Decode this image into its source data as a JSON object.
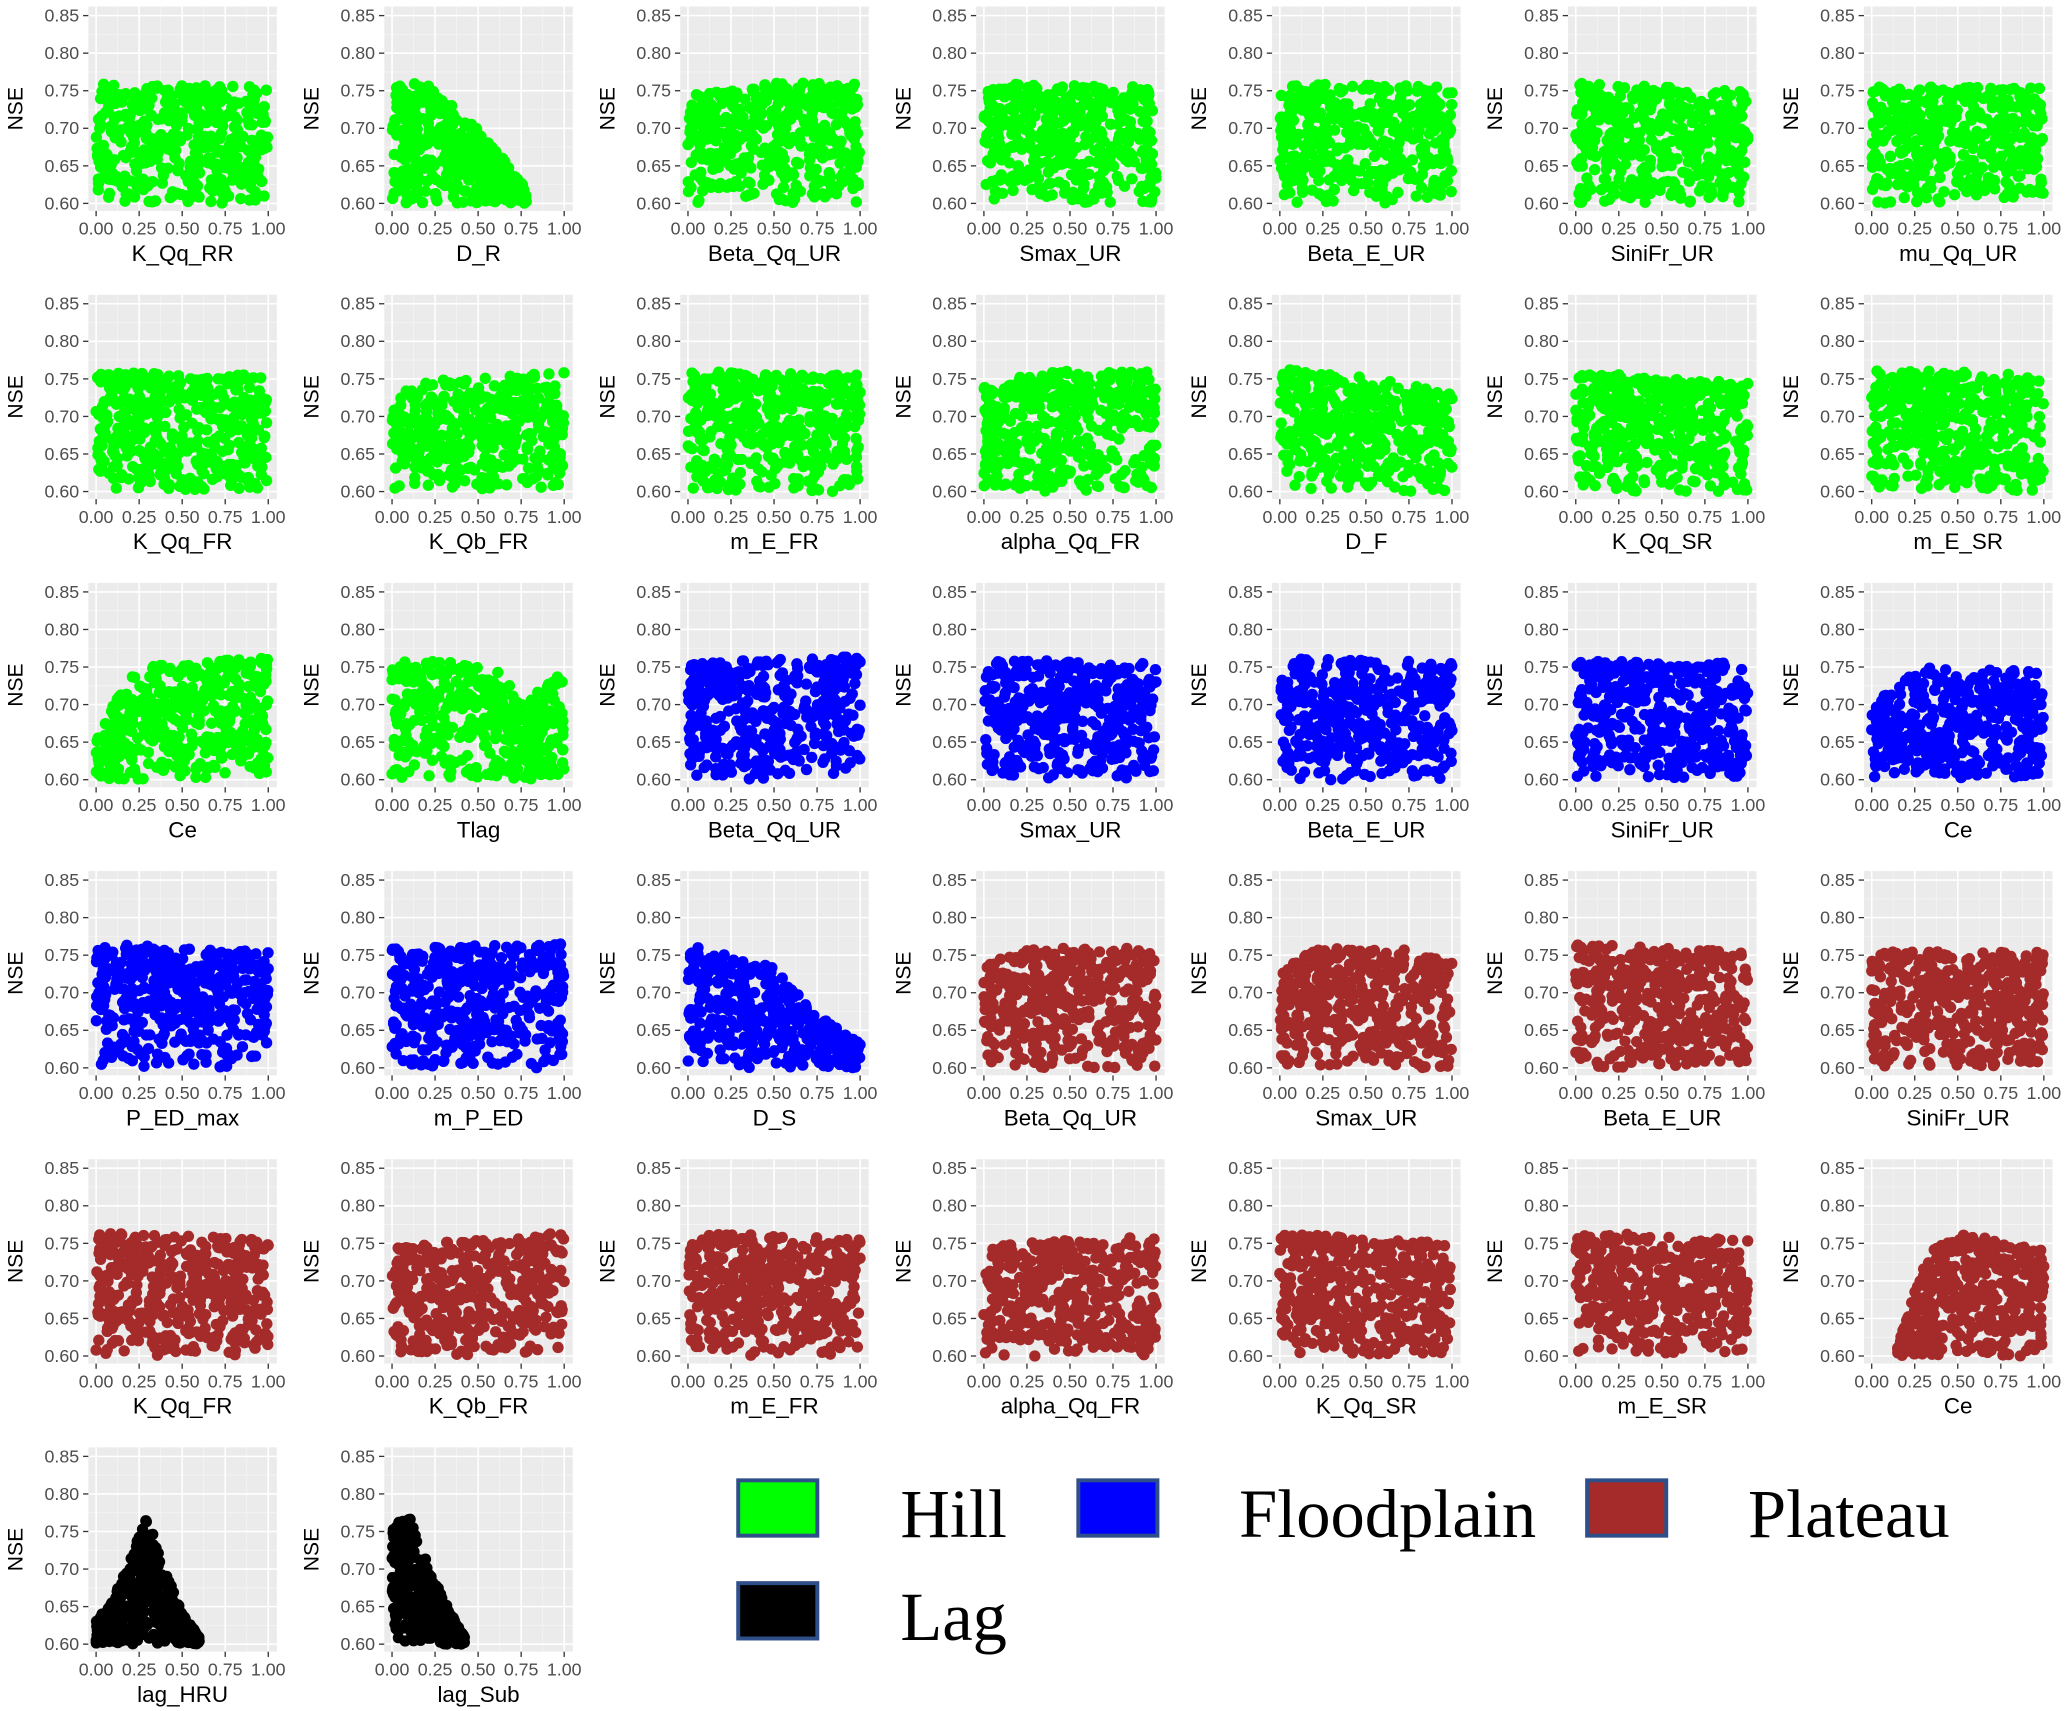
{
  "chart_data": {
    "type": "scatter",
    "ylabel": "NSE",
    "ylim": [
      0.59,
      0.862
    ],
    "xlim": [
      -0.045,
      1.05
    ],
    "yticks": [
      "0.60",
      "0.65",
      "0.70",
      "0.75",
      "0.80",
      "0.85"
    ],
    "xticks": [
      "0.00",
      "0.25",
      "0.50",
      "0.75",
      "1.00"
    ],
    "grid": true,
    "legend_position": "bottom-right",
    "groups": {
      "Hill": "#00ff00",
      "Floodplain": "#0000ff",
      "Plateau": "#a52a2a",
      "Lag": "#000000"
    },
    "legend": [
      {
        "label": "Hill",
        "group": "Hill"
      },
      {
        "label": "Floodplain",
        "group": "Floodplain"
      },
      {
        "label": "Plateau",
        "group": "Plateau"
      },
      {
        "label": "Lag",
        "group": "Lag"
      }
    ],
    "panels": [
      {
        "xlabel": "K_Qq_RR",
        "group": "Hill",
        "x_range": [
          0,
          1
        ],
        "upper_nse": [
          [
            0,
            0.76
          ],
          [
            1,
            0.755
          ]
        ]
      },
      {
        "xlabel": "D_R",
        "group": "Hill",
        "x_range": [
          0,
          0.78
        ],
        "upper_nse": [
          [
            0,
            0.765
          ],
          [
            0.25,
            0.755
          ],
          [
            0.5,
            0.7
          ],
          [
            0.75,
            0.63
          ],
          [
            0.78,
            0.61
          ]
        ]
      },
      {
        "xlabel": "Beta_Qq_UR",
        "group": "Hill",
        "x_range": [
          0,
          1
        ],
        "upper_nse": [
          [
            0,
            0.745
          ],
          [
            0.5,
            0.76
          ],
          [
            1,
            0.76
          ]
        ]
      },
      {
        "xlabel": "Smax_UR",
        "group": "Hill",
        "x_range": [
          0,
          1
        ],
        "upper_nse": [
          [
            0,
            0.76
          ],
          [
            1,
            0.755
          ]
        ]
      },
      {
        "xlabel": "Beta_E_UR",
        "group": "Hill",
        "x_range": [
          0,
          1
        ],
        "upper_nse": [
          [
            0,
            0.76
          ],
          [
            1,
            0.755
          ]
        ]
      },
      {
        "xlabel": "SiniFr_UR",
        "group": "Hill",
        "x_range": [
          0,
          1
        ],
        "upper_nse": [
          [
            0,
            0.76
          ],
          [
            1,
            0.75
          ]
        ]
      },
      {
        "xlabel": "mu_Qq_UR",
        "group": "Hill",
        "x_range": [
          0,
          1
        ],
        "upper_nse": [
          [
            0,
            0.755
          ],
          [
            1,
            0.755
          ]
        ]
      },
      {
        "xlabel": "K_Qq_FR",
        "group": "Hill",
        "x_range": [
          0,
          1
        ],
        "upper_nse": [
          [
            0,
            0.76
          ],
          [
            1,
            0.755
          ]
        ]
      },
      {
        "xlabel": "K_Qb_FR",
        "group": "Hill",
        "x_range": [
          0,
          1
        ],
        "upper_nse": [
          [
            0,
            0.71
          ],
          [
            0.1,
            0.745
          ],
          [
            1,
            0.76
          ]
        ]
      },
      {
        "xlabel": "m_E_FR",
        "group": "Hill",
        "x_range": [
          0,
          1
        ],
        "upper_nse": [
          [
            0,
            0.76
          ],
          [
            1,
            0.755
          ]
        ]
      },
      {
        "xlabel": "alpha_Qq_FR",
        "group": "Hill",
        "x_range": [
          0,
          1
        ],
        "upper_nse": [
          [
            0,
            0.74
          ],
          [
            0.3,
            0.76
          ],
          [
            1,
            0.76
          ]
        ]
      },
      {
        "xlabel": "D_F",
        "group": "Hill",
        "x_range": [
          0,
          1
        ],
        "upper_nse": [
          [
            0,
            0.765
          ],
          [
            1,
            0.74
          ]
        ]
      },
      {
        "xlabel": "K_Qq_SR",
        "group": "Hill",
        "x_range": [
          0,
          1
        ],
        "upper_nse": [
          [
            0,
            0.76
          ],
          [
            1,
            0.745
          ]
        ]
      },
      {
        "xlabel": "m_E_SR",
        "group": "Hill",
        "x_range": [
          0,
          1
        ],
        "upper_nse": [
          [
            0,
            0.765
          ],
          [
            1,
            0.755
          ]
        ]
      },
      {
        "xlabel": "Ce",
        "group": "Hill",
        "x_range": [
          0,
          1
        ],
        "upper_nse": [
          [
            0,
            0.65
          ],
          [
            0.1,
            0.7
          ],
          [
            0.25,
            0.75
          ],
          [
            1,
            0.765
          ]
        ]
      },
      {
        "xlabel": "Tlag",
        "group": "Hill",
        "x_range": [
          0,
          1
        ],
        "upper_nse": [
          [
            0,
            0.76
          ],
          [
            0.6,
            0.755
          ],
          [
            0.75,
            0.7
          ],
          [
            1,
            0.745
          ]
        ]
      },
      {
        "xlabel": "Beta_Qq_UR",
        "group": "Floodplain",
        "x_range": [
          0,
          1
        ],
        "upper_nse": [
          [
            0,
            0.755
          ],
          [
            1,
            0.765
          ]
        ]
      },
      {
        "xlabel": "Smax_UR",
        "group": "Floodplain",
        "x_range": [
          0,
          1
        ],
        "upper_nse": [
          [
            0,
            0.76
          ],
          [
            1,
            0.755
          ]
        ]
      },
      {
        "xlabel": "Beta_E_UR",
        "group": "Floodplain",
        "x_range": [
          0,
          1
        ],
        "upper_nse": [
          [
            0,
            0.765
          ],
          [
            1,
            0.755
          ]
        ]
      },
      {
        "xlabel": "SiniFr_UR",
        "group": "Floodplain",
        "x_range": [
          0,
          1
        ],
        "upper_nse": [
          [
            0,
            0.76
          ],
          [
            1,
            0.755
          ]
        ]
      },
      {
        "xlabel": "Ce",
        "group": "Floodplain",
        "x_range": [
          0,
          1
        ],
        "upper_nse": [
          [
            0,
            0.7
          ],
          [
            0.1,
            0.72
          ],
          [
            0.3,
            0.75
          ],
          [
            1,
            0.745
          ]
        ]
      },
      {
        "xlabel": "P_ED_max",
        "group": "Floodplain",
        "x_range": [
          0,
          1
        ],
        "upper_nse": [
          [
            0,
            0.765
          ],
          [
            1,
            0.755
          ]
        ]
      },
      {
        "xlabel": "m_P_ED",
        "group": "Floodplain",
        "x_range": [
          0,
          1
        ],
        "upper_nse": [
          [
            0,
            0.76
          ],
          [
            1,
            0.765
          ]
        ]
      },
      {
        "xlabel": "D_S",
        "group": "Floodplain",
        "x_range": [
          0,
          1
        ],
        "upper_nse": [
          [
            0,
            0.765
          ],
          [
            0.25,
            0.75
          ],
          [
            0.5,
            0.735
          ],
          [
            0.75,
            0.67
          ],
          [
            1,
            0.635
          ]
        ]
      },
      {
        "xlabel": "Beta_Qq_UR",
        "group": "Plateau",
        "x_range": [
          0,
          1
        ],
        "upper_nse": [
          [
            0,
            0.74
          ],
          [
            0.3,
            0.76
          ],
          [
            1,
            0.76
          ]
        ]
      },
      {
        "xlabel": "Smax_UR",
        "group": "Plateau",
        "x_range": [
          0,
          1
        ],
        "upper_nse": [
          [
            0,
            0.73
          ],
          [
            0.2,
            0.76
          ],
          [
            0.8,
            0.76
          ],
          [
            1,
            0.74
          ]
        ]
      },
      {
        "xlabel": "Beta_E_UR",
        "group": "Plateau",
        "x_range": [
          0,
          1
        ],
        "upper_nse": [
          [
            0,
            0.765
          ],
          [
            1,
            0.755
          ]
        ]
      },
      {
        "xlabel": "SiniFr_UR",
        "group": "Plateau",
        "x_range": [
          0,
          1
        ],
        "upper_nse": [
          [
            0,
            0.755
          ],
          [
            1,
            0.755
          ]
        ]
      },
      {
        "xlabel": "K_Qq_FR",
        "group": "Plateau",
        "x_range": [
          0,
          1
        ],
        "upper_nse": [
          [
            0,
            0.765
          ],
          [
            1,
            0.755
          ]
        ]
      },
      {
        "xlabel": "K_Qb_FR",
        "group": "Plateau",
        "x_range": [
          0,
          1
        ],
        "upper_nse": [
          [
            0,
            0.745
          ],
          [
            1,
            0.765
          ]
        ]
      },
      {
        "xlabel": "m_E_FR",
        "group": "Plateau",
        "x_range": [
          0,
          1
        ],
        "upper_nse": [
          [
            0,
            0.765
          ],
          [
            1,
            0.755
          ]
        ]
      },
      {
        "xlabel": "alpha_Qq_FR",
        "group": "Plateau",
        "x_range": [
          0,
          1
        ],
        "upper_nse": [
          [
            0,
            0.75
          ],
          [
            1,
            0.76
          ]
        ]
      },
      {
        "xlabel": "K_Qq_SR",
        "group": "Plateau",
        "x_range": [
          0,
          1
        ],
        "upper_nse": [
          [
            0,
            0.765
          ],
          [
            1,
            0.75
          ]
        ]
      },
      {
        "xlabel": "m_E_SR",
        "group": "Plateau",
        "x_range": [
          0,
          1
        ],
        "upper_nse": [
          [
            0,
            0.765
          ],
          [
            1,
            0.755
          ]
        ]
      },
      {
        "xlabel": "Ce",
        "group": "Plateau",
        "x_range": [
          0.15,
          1
        ],
        "upper_nse": [
          [
            0.15,
            0.61
          ],
          [
            0.25,
            0.69
          ],
          [
            0.35,
            0.74
          ],
          [
            0.5,
            0.765
          ],
          [
            1,
            0.74
          ]
        ]
      },
      {
        "xlabel": "lag_HRU",
        "group": "Lag",
        "x_range": [
          0,
          0.6
        ],
        "upper_nse": [
          [
            0,
            0.63
          ],
          [
            0.1,
            0.66
          ],
          [
            0.25,
            0.745
          ],
          [
            0.3,
            0.77
          ],
          [
            0.4,
            0.7
          ],
          [
            0.5,
            0.64
          ],
          [
            0.6,
            0.61
          ]
        ]
      },
      {
        "xlabel": "lag_Sub",
        "group": "Lag",
        "x_range": [
          0,
          0.42
        ],
        "upper_nse": [
          [
            0,
            0.76
          ],
          [
            0.1,
            0.77
          ],
          [
            0.2,
            0.71
          ],
          [
            0.3,
            0.66
          ],
          [
            0.42,
            0.61
          ]
        ]
      }
    ]
  }
}
